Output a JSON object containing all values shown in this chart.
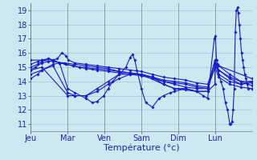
{
  "bg_color": "#cce8f0",
  "grid_color": "#aacce0",
  "line_color": "#1a1acc",
  "marker_color": "#1a1acc",
  "ylim": [
    10.5,
    19.5
  ],
  "yticks": [
    11,
    12,
    13,
    14,
    15,
    16,
    17,
    18,
    19
  ],
  "day_labels": [
    "Jeu",
    "Mar",
    "Ven",
    "Sam",
    "Dim",
    "Lun"
  ],
  "day_positions": [
    0.0,
    0.1667,
    0.3333,
    0.5,
    0.6667,
    0.8333
  ],
  "xlabel": "Température (°c)",
  "series": [
    [
      0.0,
      14.8,
      0.02,
      15.0,
      0.05,
      15.3,
      0.08,
      15.4,
      0.1,
      15.5,
      0.12,
      15.6,
      0.14,
      16.0,
      0.16,
      15.8,
      0.17,
      15.5,
      0.2,
      15.3,
      0.25,
      15.2,
      0.3,
      15.1,
      0.35,
      15.0,
      0.4,
      14.9,
      0.45,
      14.8,
      0.5,
      14.7,
      0.55,
      14.5,
      0.6,
      14.3,
      0.65,
      14.2,
      0.7,
      14.1,
      0.75,
      13.9,
      0.8,
      13.8,
      0.833,
      15.3,
      0.85,
      15.1,
      0.9,
      14.5,
      0.95,
      14.0,
      1.0,
      13.7
    ],
    [
      0.0,
      15.0,
      0.03,
      15.2,
      0.05,
      15.4,
      0.08,
      15.6,
      0.1,
      15.5,
      0.13,
      15.3,
      0.16,
      15.2,
      0.19,
      15.1,
      0.22,
      15.0,
      0.25,
      15.0,
      0.28,
      14.9,
      0.3,
      14.9,
      0.35,
      14.8,
      0.4,
      14.7,
      0.45,
      14.6,
      0.5,
      14.5,
      0.55,
      14.3,
      0.6,
      14.1,
      0.65,
      14.0,
      0.7,
      13.9,
      0.75,
      13.7,
      0.8,
      13.6,
      0.833,
      15.0,
      0.85,
      14.8,
      0.9,
      14.2,
      0.95,
      13.8,
      1.0,
      14.0
    ],
    [
      0.0,
      15.2,
      0.03,
      15.4,
      0.05,
      15.5,
      0.08,
      15.6,
      0.1,
      15.5,
      0.13,
      15.3,
      0.16,
      15.2,
      0.19,
      15.1,
      0.22,
      15.0,
      0.25,
      14.9,
      0.3,
      14.8,
      0.35,
      14.7,
      0.4,
      14.6,
      0.45,
      14.5,
      0.5,
      14.4,
      0.55,
      14.2,
      0.6,
      14.0,
      0.65,
      13.9,
      0.7,
      13.8,
      0.75,
      13.6,
      0.8,
      13.5,
      0.833,
      15.5,
      0.85,
      14.5,
      0.9,
      14.0,
      0.95,
      13.8,
      1.0,
      13.9
    ],
    [
      0.0,
      15.5,
      0.05,
      15.5,
      0.1,
      15.4,
      0.15,
      15.3,
      0.2,
      15.2,
      0.25,
      15.1,
      0.3,
      15.0,
      0.35,
      14.9,
      0.4,
      14.7,
      0.45,
      14.6,
      0.5,
      14.5,
      0.55,
      14.3,
      0.6,
      14.0,
      0.65,
      13.8,
      0.7,
      13.6,
      0.75,
      13.5,
      0.8,
      13.5,
      0.833,
      15.0,
      0.85,
      14.3,
      0.9,
      13.8,
      0.95,
      13.6,
      1.0,
      13.5
    ],
    [
      0.0,
      14.2,
      0.03,
      14.5,
      0.05,
      14.8,
      0.1,
      15.2,
      0.13,
      15.3,
      0.167,
      13.5,
      0.2,
      13.2,
      0.25,
      12.8,
      0.28,
      12.5,
      0.3,
      12.6,
      0.33,
      13.0,
      0.35,
      13.5,
      0.37,
      14.0,
      0.4,
      14.5,
      0.43,
      15.0,
      0.45,
      15.7,
      0.46,
      15.9,
      0.47,
      15.5,
      0.48,
      14.8,
      0.5,
      13.5,
      0.52,
      12.5,
      0.55,
      12.2,
      0.58,
      12.8,
      0.6,
      13.0,
      0.63,
      13.2,
      0.65,
      13.3,
      0.7,
      13.5,
      0.75,
      13.3,
      0.78,
      13.0,
      0.8,
      12.8,
      0.83,
      17.0,
      0.835,
      17.2,
      0.84,
      15.5,
      0.845,
      15.2,
      0.85,
      14.5,
      0.86,
      14.0,
      0.87,
      13.5,
      0.88,
      12.5,
      0.89,
      12.0,
      0.9,
      11.0,
      0.905,
      11.0,
      0.91,
      11.2,
      0.915,
      12.0,
      0.92,
      13.5,
      0.925,
      17.5,
      0.93,
      19.0,
      0.935,
      19.2,
      0.938,
      18.8,
      0.943,
      18.0,
      0.948,
      17.0,
      0.953,
      16.0,
      0.958,
      15.5,
      0.963,
      15.0,
      0.968,
      14.5,
      0.973,
      14.2,
      0.978,
      13.8,
      0.985,
      13.5,
      1.0,
      13.5
    ],
    [
      0.0,
      14.8,
      0.05,
      15.0,
      0.167,
      13.0,
      0.2,
      13.0,
      0.25,
      13.0,
      0.3,
      13.5,
      0.35,
      14.0,
      0.4,
      14.5,
      0.5,
      14.5,
      0.6,
      13.8,
      0.65,
      13.5,
      0.7,
      13.5,
      0.75,
      13.3,
      0.8,
      13.3,
      0.833,
      13.8,
      0.833,
      15.2,
      1.0,
      14.2
    ],
    [
      0.0,
      14.5,
      0.05,
      14.8,
      0.1,
      15.1,
      0.167,
      13.2,
      0.2,
      13.0,
      0.25,
      13.0,
      0.3,
      13.3,
      0.35,
      13.8,
      0.4,
      14.2,
      0.45,
      14.5,
      0.5,
      14.5,
      0.55,
      14.3,
      0.6,
      13.8,
      0.65,
      13.5,
      0.7,
      13.4,
      0.75,
      13.3,
      0.8,
      13.3,
      0.833,
      15.5,
      0.85,
      14.8,
      0.9,
      14.3,
      0.95,
      14.0,
      1.0,
      14.0
    ]
  ]
}
